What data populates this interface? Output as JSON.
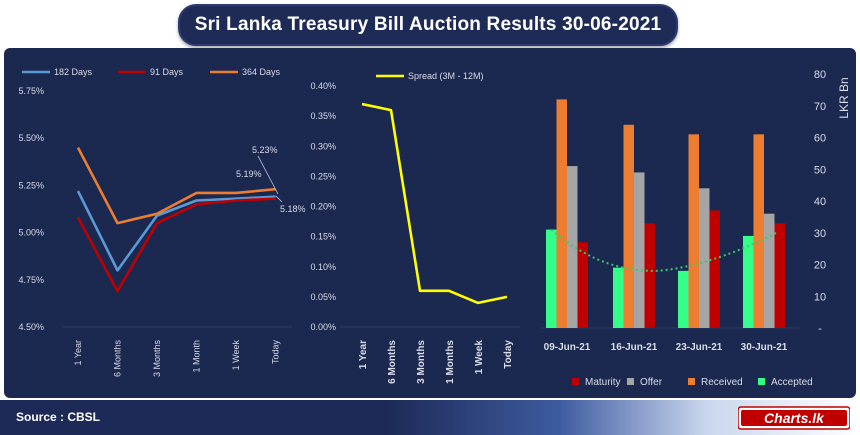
{
  "title": "Sri Lanka Treasury Bill Auction Results  30-06-2021",
  "source": "Source : CBSL",
  "logo_text": "Charts.lk",
  "colors": {
    "panel": "#1b2850",
    "grid": "#2c3a66",
    "text": "#d9dde8",
    "d182": "#5b9bd5",
    "d91": "#c00000",
    "d364": "#ed7d31",
    "spread": "#ffff00",
    "maturity": "#c00000",
    "offer": "#a5a5a5",
    "received": "#ed7d31",
    "accepted": "#33ff88",
    "trend": "#33cc66"
  },
  "chart_data": [
    {
      "type": "line",
      "categories": [
        "1 Year",
        "6 Months",
        "3 Months",
        "1 Month",
        "1 Week",
        "Today"
      ],
      "ylim": [
        4.5,
        5.75
      ],
      "yticks": [
        "4.50%",
        "4.75%",
        "5.00%",
        "5.25%",
        "5.50%",
        "5.75%"
      ],
      "series": [
        {
          "name": "182 Days",
          "values": [
            5.22,
            4.8,
            5.09,
            5.17,
            5.18,
            5.19
          ]
        },
        {
          "name": "91 Days",
          "values": [
            5.08,
            4.69,
            5.05,
            5.15,
            5.17,
            5.18
          ]
        },
        {
          "name": "364 Days",
          "values": [
            5.45,
            5.05,
            5.1,
            5.21,
            5.21,
            5.23
          ]
        }
      ],
      "annotations": [
        "5.19%",
        "5.23%",
        "5.18%"
      ]
    },
    {
      "type": "line",
      "categories": [
        "1 Year",
        "6 Months",
        "3 Months",
        "1 Months",
        "1 Week",
        "Today"
      ],
      "ylim": [
        0,
        0.4
      ],
      "yticks": [
        "0.00%",
        "0.05%",
        "0.10%",
        "0.15%",
        "0.20%",
        "0.25%",
        "0.30%",
        "0.35%",
        "0.40%"
      ],
      "series": [
        {
          "name": "Spread (3M - 12M)",
          "values": [
            0.37,
            0.36,
            0.06,
            0.06,
            0.04,
            0.05
          ]
        }
      ]
    },
    {
      "type": "bar",
      "categories": [
        "09-Jun-21",
        "16-Jun-21",
        "23-Jun-21",
        "30-Jun-21"
      ],
      "ylim": [
        0,
        80
      ],
      "yticks": [
        "-",
        "10",
        "20",
        "30",
        "40",
        "50",
        "60",
        "70",
        "80"
      ],
      "ylabel": "LKR Bn",
      "series": [
        {
          "name": "Accepted",
          "values": [
            31,
            19,
            18,
            29
          ]
        },
        {
          "name": "Received",
          "values": [
            72,
            64,
            61,
            61
          ]
        },
        {
          "name": "Offer",
          "values": [
            51,
            49,
            44,
            36
          ]
        },
        {
          "name": "Maturity",
          "values": [
            27,
            33,
            37,
            33
          ]
        }
      ],
      "legend_order": [
        "Maturity",
        "Offer",
        "Received",
        "Accepted"
      ]
    }
  ]
}
